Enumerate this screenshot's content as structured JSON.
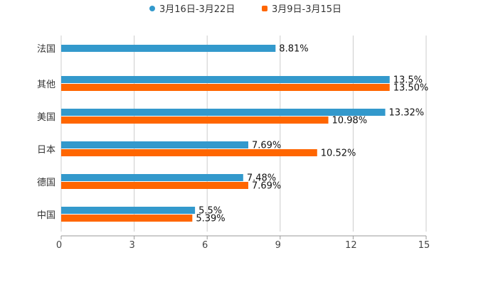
{
  "chart_data": {
    "type": "bar",
    "orientation": "horizontal",
    "title": "",
    "xlabel": "",
    "ylabel": "",
    "categories": [
      "法国",
      "其他",
      "美国",
      "日本",
      "德国",
      "中国"
    ],
    "series": [
      {
        "name": "3月16日-3月22日",
        "color": "#3399cc",
        "values": [
          8.81,
          13.5,
          13.32,
          7.69,
          7.48,
          5.5
        ],
        "labels": [
          "8.81%",
          "13.5%",
          "13.32%",
          "7.69%",
          "7.48%",
          "5.5%"
        ]
      },
      {
        "name": "3月9日-3月15日",
        "color": "#ff6600",
        "values": [
          null,
          13.5,
          10.98,
          10.52,
          7.69,
          5.39
        ],
        "labels": [
          null,
          "13.50%",
          "10.98%",
          "10.52%",
          "7.69%",
          "5.39%"
        ]
      }
    ],
    "xlim": [
      0,
      15
    ],
    "xticks": [
      0,
      3,
      6,
      9,
      12,
      15
    ],
    "xtick_labels": [
      "0",
      "3",
      "6",
      "9",
      "12",
      "15"
    ],
    "grid": true,
    "legend_position": "top-center"
  }
}
